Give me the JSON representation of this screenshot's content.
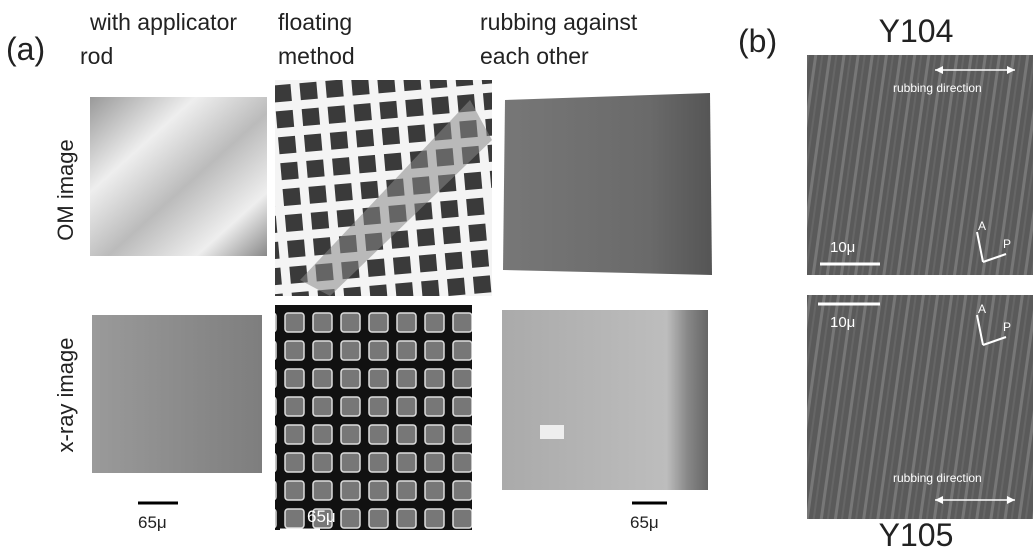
{
  "panel_a": {
    "label": "(a)",
    "columns": [
      {
        "title_lines": [
          "with applicator",
          "rod"
        ]
      },
      {
        "title_lines": [
          "floating",
          "method"
        ]
      },
      {
        "title_lines": [
          "rubbing against",
          "each other"
        ]
      }
    ],
    "rows": [
      "OM image",
      "x-ray image"
    ],
    "scale_bars": [
      "65μ",
      "65μ",
      "65μ"
    ]
  },
  "panel_b": {
    "label": "(b)",
    "top": {
      "title": "Y104",
      "direction": "rubbing direction",
      "scale": "10μ",
      "axes": [
        "A",
        "P"
      ]
    },
    "bottom": {
      "title": "Y105",
      "direction": "rubbing direction",
      "scale": "10μ",
      "axes": [
        "A",
        "P"
      ]
    }
  }
}
